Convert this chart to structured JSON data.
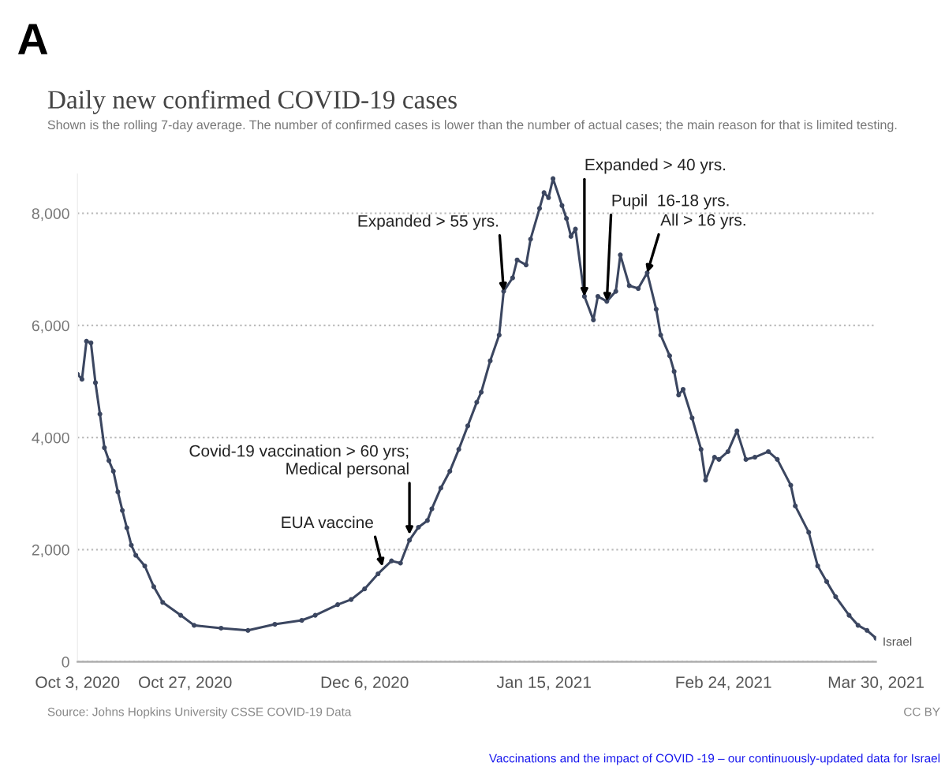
{
  "chart_data": {
    "type": "line",
    "title": "Daily new confirmed COVID-19 cases",
    "subtitle": "Shown is the rolling 7-day average. The number of confirmed cases is lower than the number of actual cases; the main reason for that is limited testing.",
    "x": [
      "2020-10-03",
      "2020-10-04",
      "2020-10-05",
      "2020-10-06",
      "2020-10-07",
      "2020-10-08",
      "2020-10-09",
      "2020-10-10",
      "2020-10-11",
      "2020-10-12",
      "2020-10-13",
      "2020-10-14",
      "2020-10-15",
      "2020-10-16",
      "2020-10-18",
      "2020-10-20",
      "2020-10-22",
      "2020-10-26",
      "2020-10-29",
      "2020-11-04",
      "2020-11-10",
      "2020-11-16",
      "2020-11-22",
      "2020-11-25",
      "2020-11-30",
      "2020-12-03",
      "2020-12-06",
      "2020-12-09",
      "2020-12-12",
      "2020-12-14",
      "2020-12-16",
      "2020-12-18",
      "2020-12-20",
      "2020-12-21",
      "2020-12-23",
      "2020-12-25",
      "2020-12-27",
      "2020-12-29",
      "2020-12-31",
      "2021-01-01",
      "2021-01-03",
      "2021-01-05",
      "2021-01-06",
      "2021-01-08",
      "2021-01-09",
      "2021-01-11",
      "2021-01-12",
      "2021-01-14",
      "2021-01-15",
      "2021-01-16",
      "2021-01-17",
      "2021-01-19",
      "2021-01-20",
      "2021-01-21",
      "2021-01-22",
      "2021-01-24",
      "2021-01-26",
      "2021-01-27",
      "2021-01-29",
      "2021-01-31",
      "2021-02-01",
      "2021-02-03",
      "2021-02-05",
      "2021-02-07",
      "2021-02-09",
      "2021-02-10",
      "2021-02-12",
      "2021-02-13",
      "2021-02-14",
      "2021-02-15",
      "2021-02-17",
      "2021-02-19",
      "2021-02-20",
      "2021-02-22",
      "2021-02-23",
      "2021-02-25",
      "2021-02-27",
      "2021-03-01",
      "2021-03-03",
      "2021-03-06",
      "2021-03-08",
      "2021-03-11",
      "2021-03-12",
      "2021-03-15",
      "2021-03-17",
      "2021-03-19",
      "2021-03-21",
      "2021-03-24",
      "2021-03-26",
      "2021-03-28",
      "2021-03-30"
    ],
    "series": [
      {
        "name": "Israel",
        "color": "#3b4660",
        "values": [
          5130,
          5040,
          5720,
          5690,
          4980,
          4420,
          3820,
          3590,
          3400,
          3030,
          2700,
          2390,
          2080,
          1900,
          1710,
          1340,
          1060,
          830,
          650,
          600,
          560,
          670,
          740,
          830,
          1020,
          1110,
          1300,
          1570,
          1800,
          1760,
          2170,
          2400,
          2520,
          2730,
          3100,
          3400,
          3790,
          4210,
          4630,
          4810,
          5370,
          5830,
          6610,
          6850,
          7170,
          7080,
          7540,
          8090,
          8370,
          8280,
          8620,
          8140,
          7910,
          7590,
          7720,
          6520,
          6100,
          6520,
          6430,
          6610,
          7260,
          6710,
          6660,
          6940,
          6290,
          5830,
          5460,
          5180,
          4760,
          4860,
          4350,
          3790,
          3240,
          3650,
          3610,
          3750,
          4120,
          3610,
          3650,
          3750,
          3610,
          3150,
          2780,
          2310,
          1710,
          1430,
          1160,
          830,
          650,
          560,
          420
        ]
      }
    ],
    "xlim": [
      "2020-10-03",
      "2021-03-30"
    ],
    "xticks": [
      {
        "value": "2020-10-03",
        "label": "Oct 3, 2020"
      },
      {
        "value": "2020-10-27",
        "label": "Oct 27, 2020"
      },
      {
        "value": "2020-12-06",
        "label": "Dec 6, 2020"
      },
      {
        "value": "2021-01-15",
        "label": "Jan 15, 2021"
      },
      {
        "value": "2021-02-24",
        "label": "Feb 24, 2021"
      },
      {
        "value": "2021-03-30",
        "label": "Mar 30, 2021"
      }
    ],
    "ylim": [
      0,
      8700
    ],
    "yticks": [
      0,
      {
        "value": 2000,
        "label": "2,000"
      },
      {
        "value": 4000,
        "label": "4,000"
      },
      {
        "value": 6000,
        "label": "6,000"
      },
      {
        "value": 8000,
        "label": "8,000"
      }
    ],
    "grid": "y",
    "marker": "circle",
    "line_style": "solid",
    "annotations": [
      "A",
      "Source: Johns Hopkins University CSSE COVID-19 Data",
      "CC BY",
      "Vaccinations and the impact of COVID -19 – our continuously-updated data for Israel",
      {
        "text": "Expanded > 55 yrs.",
        "x": "2021-01-06",
        "y": 6610
      },
      {
        "text": "Expanded > 40 yrs.",
        "x": "2021-01-24",
        "y": 6520
      },
      {
        "text": "Pupil  16-18 yrs.",
        "x": "2021-01-29",
        "y": 6430
      },
      {
        "text": "All > 16 yrs.",
        "x": "2021-02-07",
        "y": 6940
      },
      {
        "text": "Covid-19 vaccination > 60 yrs;\nMedical personal",
        "x": "2020-12-16",
        "y": 2270
      },
      {
        "text": "EUA vaccine",
        "x": "2020-12-10",
        "y": 1700
      }
    ]
  }
}
